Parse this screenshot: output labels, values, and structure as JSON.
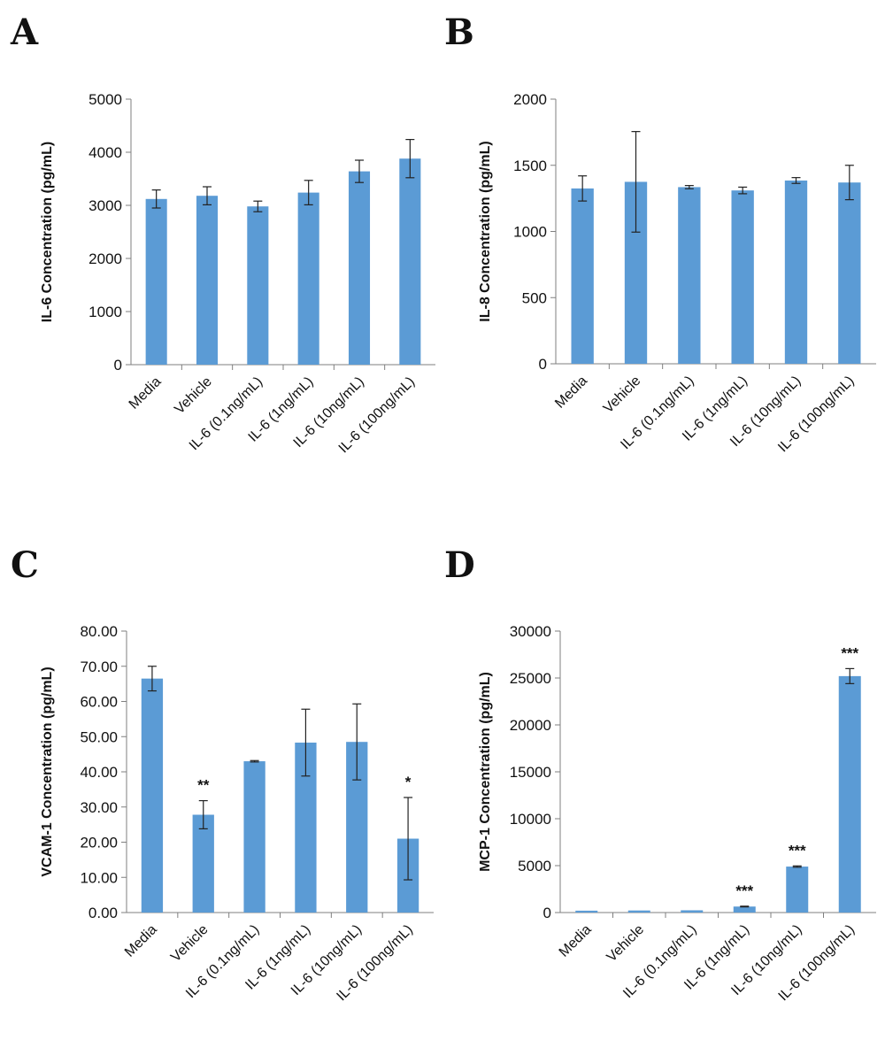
{
  "colors": {
    "bar": "#5b9bd5",
    "axis": "#7f7f7f",
    "text": "#111111"
  },
  "chart_data": [
    {
      "panel": "A",
      "type": "bar",
      "ylabel": "IL-6 Concentration (pg/mL)",
      "categories": [
        "Media",
        "Vehicle",
        "IL-6 (0.1ng/mL)",
        "IL-6 (1ng/mL)",
        "IL-6 (10ng/mL)",
        "IL-6 (100ng/mL)"
      ],
      "values": [
        3120,
        3180,
        2980,
        3240,
        3640,
        3880
      ],
      "errors": [
        170,
        170,
        100,
        230,
        210,
        360
      ],
      "significance": [
        "",
        "",
        "",
        "",
        "",
        ""
      ],
      "ylim": [
        0,
        5000
      ],
      "yticks": [
        "0",
        "1000",
        "2000",
        "3000",
        "4000",
        "5000"
      ],
      "ytick_step": 1000
    },
    {
      "panel": "B",
      "type": "bar",
      "ylabel": "IL-8 Concentration (pg/mL)",
      "categories": [
        "Media",
        "Vehicle",
        "IL-6 (0.1ng/mL)",
        "IL-6 (1ng/mL)",
        "IL-6 (10ng/mL)",
        "IL-6 (100ng/mL)"
      ],
      "values": [
        1325,
        1375,
        1335,
        1310,
        1385,
        1370
      ],
      "errors": [
        95,
        380,
        12,
        25,
        22,
        130
      ],
      "significance": [
        "",
        "",
        "",
        "",
        "",
        ""
      ],
      "ylim": [
        0,
        2000
      ],
      "yticks": [
        "0",
        "500",
        "1000",
        "1500",
        "2000"
      ],
      "ytick_step": 500
    },
    {
      "panel": "C",
      "type": "bar",
      "ylabel": "VCAM-1 Concentration (pg/mL)",
      "categories": [
        "Media",
        "Vehicle",
        "IL-6 (0.1ng/mL)",
        "IL-6 (1ng/mL)",
        "IL-6 (10ng/mL)",
        "IL-6 (100ng/mL)"
      ],
      "values": [
        66.5,
        27.8,
        43.0,
        48.3,
        48.5,
        21.0
      ],
      "errors": [
        3.5,
        4.0,
        0.2,
        9.5,
        10.8,
        11.7
      ],
      "significance": [
        "",
        "**",
        "",
        "",
        "",
        "*"
      ],
      "ylim": [
        0,
        80
      ],
      "yticks": [
        "0.00",
        "10.00",
        "20.00",
        "30.00",
        "40.00",
        "50.00",
        "60.00",
        "70.00",
        "80.00"
      ],
      "ytick_step": 10
    },
    {
      "panel": "D",
      "type": "bar",
      "ylabel": "MCP-1 Concentration (pg/mL)",
      "categories": [
        "Media",
        "Vehicle",
        "IL-6 (0.1ng/mL)",
        "IL-6 (1ng/mL)",
        "IL-6 (10ng/mL)",
        "IL-6 (100ng/mL)"
      ],
      "values": [
        200,
        220,
        240,
        640,
        4900,
        25200
      ],
      "errors": [
        0,
        0,
        0,
        40,
        70,
        800
      ],
      "significance": [
        "",
        "",
        "",
        "***",
        "***",
        "***"
      ],
      "ylim": [
        0,
        30000
      ],
      "yticks": [
        "0",
        "5000",
        "10000",
        "15000",
        "20000",
        "25000",
        "30000"
      ],
      "ytick_step": 5000
    }
  ]
}
